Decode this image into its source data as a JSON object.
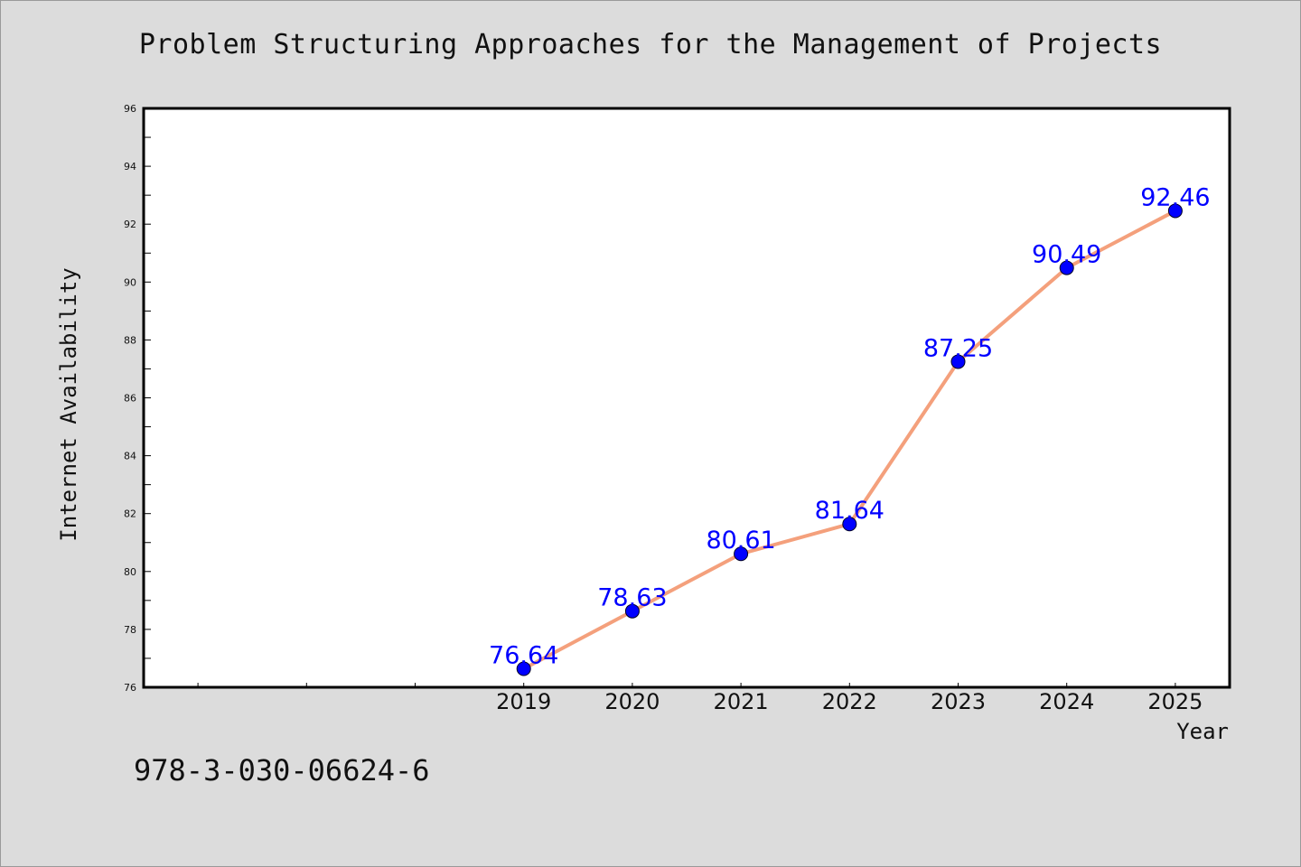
{
  "page": {
    "title": "Problem Structuring Approaches for the Management of Projects",
    "footer_text": "978-3-030-06624-6"
  },
  "chart_data": {
    "type": "line",
    "title": "Problem Structuring Approaches for the Management of Projects",
    "xlabel": "Year",
    "ylabel": "Internet Availability",
    "x": [
      "2019",
      "2020",
      "2021",
      "2022",
      "2023",
      "2024",
      "2025"
    ],
    "series": [
      {
        "values": [
          76.64,
          78.63,
          80.61,
          81.64,
          87.25,
          90.49,
          92.46
        ],
        "data_labels": [
          "76.64",
          "78.63",
          "80.61",
          "81.64",
          "87.25",
          "90.49",
          "92.46"
        ],
        "line_color": "#f4a07c",
        "marker_color": "#0000ff"
      }
    ],
    "ylim": [
      76,
      96
    ],
    "yticks": [
      76,
      78,
      80,
      82,
      84,
      86,
      88,
      90,
      92,
      94,
      96
    ],
    "ytick_labels": [
      "76",
      "78",
      "80",
      "82",
      "84",
      "86",
      "88",
      "90",
      "92",
      "94",
      "96"
    ],
    "xlim_index": [
      -3.5,
      6.5
    ],
    "grid": false,
    "legend": "none",
    "colors": {
      "background": "#dcdcdc",
      "plot_area": "#ffffff",
      "data_label": "#0000ff"
    }
  }
}
